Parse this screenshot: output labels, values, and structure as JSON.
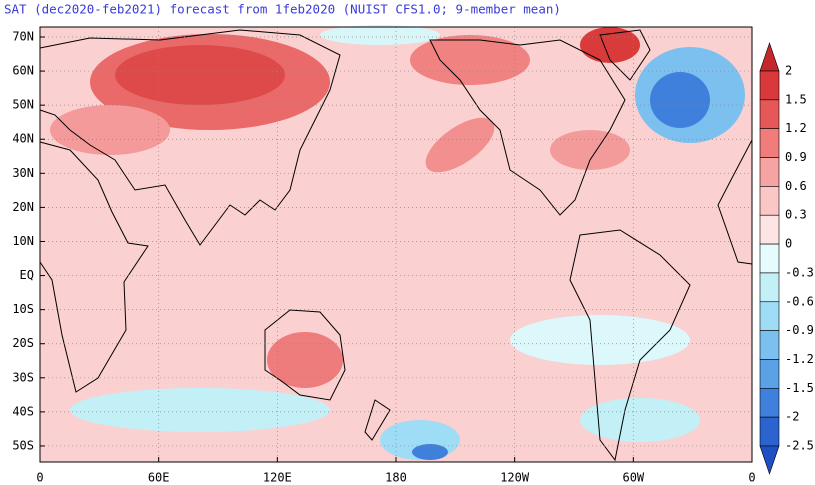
{
  "title": "SAT (dec2020-feb2021) forecast from 1feb2020 (NUIST CFS1.0; 9-member mean)",
  "lat_labels": [
    "70N",
    "60N",
    "50N",
    "40N",
    "30N",
    "20N",
    "10N",
    "EQ",
    "10S",
    "20S",
    "30S",
    "40S",
    "50S"
  ],
  "lon_labels": [
    "0",
    "60E",
    "120E",
    "180",
    "120W",
    "60W",
    "0"
  ],
  "colorbar": {
    "levels": [
      2,
      1.5,
      1.2,
      0.9,
      0.6,
      0.3,
      0,
      -0.3,
      -0.6,
      -0.9,
      -1.2,
      -1.5,
      -2,
      -2.5
    ],
    "colors": [
      "#c4282b",
      "#d9393b",
      "#e65757",
      "#f07c7c",
      "#f6a3a3",
      "#fac6c6",
      "#fde5e5",
      "#e6fbfc",
      "#c2f0f6",
      "#9fdcf5",
      "#7cc0f0",
      "#5aa1e6",
      "#3f80dc",
      "#2b63cf",
      "#1f4fc2"
    ]
  }
}
